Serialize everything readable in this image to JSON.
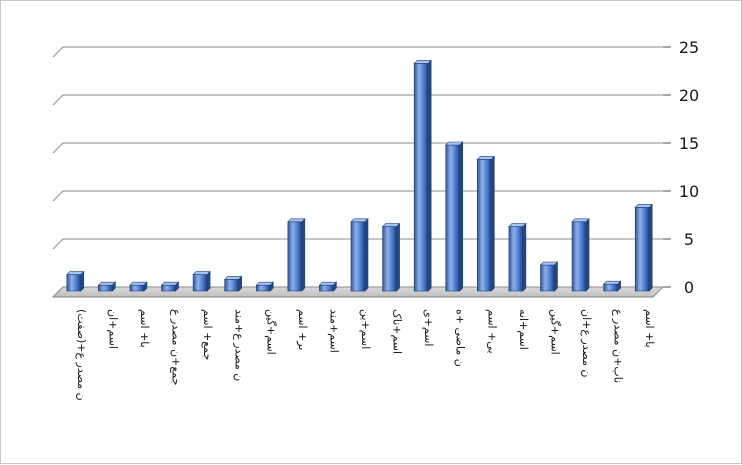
{
  "chart_data": {
    "type": "bar",
    "title": "",
    "xlabel": "",
    "ylabel": "",
    "ylim": [
      0,
      25
    ],
    "yticks": [
      0,
      5,
      10,
      15,
      20,
      25
    ],
    "y_axis_side": "right",
    "grid": true,
    "legend": "none",
    "categories": [
      "ن مصدر ع+(صفت)",
      "اسم+ان",
      "با+ اسم",
      "جمع+ن مصدر ع",
      "جمع+ اسم",
      "ن مصدر ع+مند",
      "اسم+گین",
      "بر+ اسم",
      "اسم+مند",
      "اسم+ین",
      "اسم+ناک",
      "اسم+ی",
      "ن ماضی +ه",
      "بی+ اسم",
      "اسم+انه",
      "اسم+گین",
      "ن مصدر ع+ان",
      "ناب+ن مصدر ع",
      "با+ اسم"
    ],
    "values": [
      1.5,
      0.4,
      0.4,
      0.4,
      1.5,
      1,
      0.4,
      7,
      0.4,
      7,
      6.5,
      23.5,
      15,
      13.5,
      6.5,
      2.5,
      7,
      0.5,
      8.5
    ],
    "bar_color": "#4a7bd0"
  }
}
